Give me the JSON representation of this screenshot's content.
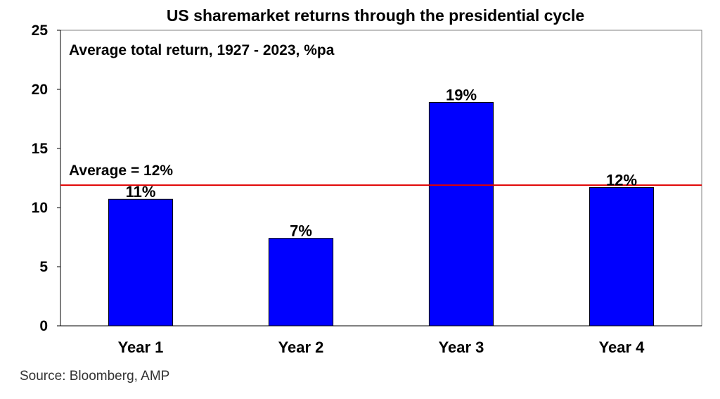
{
  "chart_data": {
    "type": "bar",
    "title": "US sharemarket returns through the presidential cycle",
    "subtitle": "Average total return, 1927 - 2023, %pa",
    "categories": [
      "Year 1",
      "Year 2",
      "Year 3",
      "Year 4"
    ],
    "values": [
      10.7,
      7.4,
      18.9,
      11.7
    ],
    "data_labels": [
      "11%",
      "7%",
      "19%",
      "12%"
    ],
    "xlabel": "",
    "ylabel": "",
    "ylim": [
      0,
      25
    ],
    "yticks": [
      0,
      5,
      10,
      15,
      20,
      25
    ],
    "grid": false,
    "bar_color": "#0000FF",
    "reference_line": {
      "value": 11.9,
      "label": "Average = 12%",
      "color": "#E00000"
    }
  },
  "source": "Source: Bloomberg, AMP"
}
